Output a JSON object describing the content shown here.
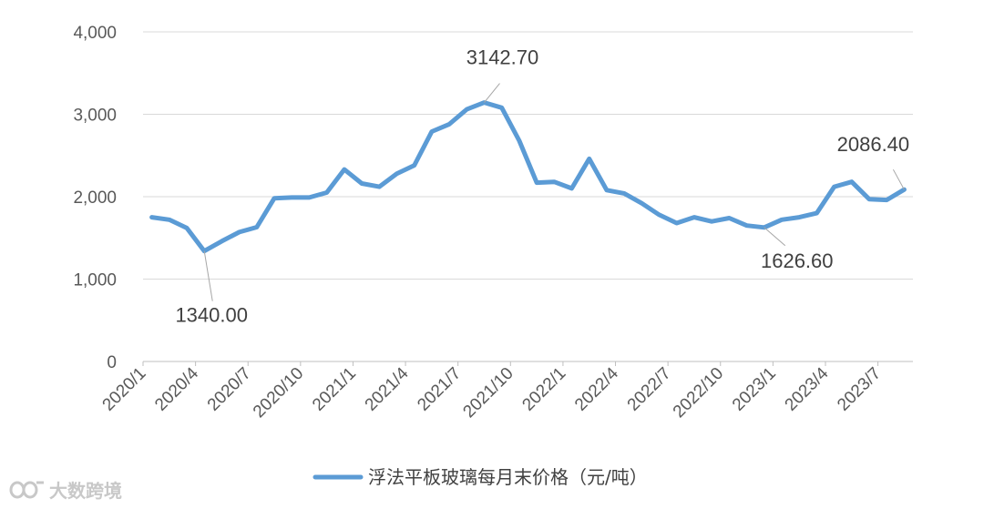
{
  "chart_data": {
    "type": "line",
    "title": "",
    "xlabel": "",
    "ylabel": "",
    "ylim": [
      0,
      4000
    ],
    "yticks": [
      0,
      1000,
      2000,
      3000,
      4000
    ],
    "y_tick_labels": [
      "0",
      "1,000",
      "2,000",
      "3,000",
      "4,000"
    ],
    "x_tick_labels": [
      "2020/1",
      "2020/4",
      "2020/7",
      "2020/10",
      "2021/1",
      "2021/4",
      "2021/7",
      "2021/10",
      "2022/1",
      "2022/4",
      "2022/7",
      "2022/10",
      "2023/1",
      "2023/4",
      "2023/7"
    ],
    "grid": "horizontal",
    "legend_position": "bottom",
    "line_color": "#5b9bd5",
    "series": [
      {
        "name": "浮法平板玻璃每月末价格（元/吨）",
        "x": [
          "2020/1",
          "2020/2",
          "2020/3",
          "2020/4",
          "2020/5",
          "2020/6",
          "2020/7",
          "2020/8",
          "2020/9",
          "2020/10",
          "2020/11",
          "2020/12",
          "2021/1",
          "2021/2",
          "2021/3",
          "2021/4",
          "2021/5",
          "2021/6",
          "2021/7",
          "2021/8",
          "2021/9",
          "2021/10",
          "2021/11",
          "2021/12",
          "2022/1",
          "2022/2",
          "2022/3",
          "2022/4",
          "2022/5",
          "2022/6",
          "2022/7",
          "2022/8",
          "2022/9",
          "2022/10",
          "2022/11",
          "2022/12",
          "2023/1",
          "2023/2",
          "2023/3",
          "2023/4",
          "2023/5",
          "2023/6",
          "2023/7",
          "2023/8"
        ],
        "values": [
          1750,
          1720,
          1620,
          1340.0,
          1460,
          1570,
          1630,
          1980,
          1990,
          1990,
          2050,
          2330,
          2160,
          2120,
          2280,
          2380,
          2790,
          2880,
          3060,
          3142.7,
          3080,
          2680,
          2170,
          2180,
          2100,
          2460,
          2080,
          2040,
          1920,
          1780,
          1680,
          1750,
          1700,
          1740,
          1650,
          1626.6,
          1720,
          1750,
          1800,
          2120,
          2180,
          1970,
          1960,
          2086.4
        ]
      }
    ],
    "annotations": [
      {
        "label": "1340.00",
        "x": "2020/4",
        "value": 1340.0
      },
      {
        "label": "3142.70",
        "x": "2021/8",
        "value": 3142.7
      },
      {
        "label": "1626.60",
        "x": "2022/12",
        "value": 1626.6
      },
      {
        "label": "2086.40",
        "x": "2023/8",
        "value": 2086.4
      }
    ]
  },
  "watermark": {
    "icon": "infinity-logo-icon",
    "text": "大数跨境"
  }
}
